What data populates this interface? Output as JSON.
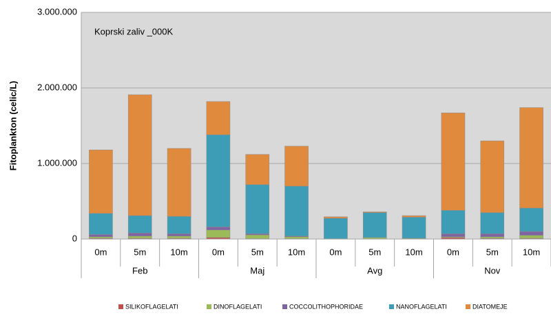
{
  "chart_data": {
    "type": "bar",
    "stacked": true,
    "annotation": "Koprski zaliv _000K",
    "y_label": "Fitoplankton (celic/L)",
    "groups": [
      "Feb",
      "Maj",
      "Avg",
      "Nov"
    ],
    "categories": [
      "0m",
      "5m",
      "10m",
      "0m",
      "5m",
      "10m",
      "0m",
      "5m",
      "10m",
      "0m",
      "5m",
      "10m"
    ],
    "ylim": [
      0,
      3000000
    ],
    "yticks": [
      0,
      {
        "value": 1000000,
        "label": "1.000.000"
      },
      {
        "value": 2000000,
        "label": "2.000.000"
      },
      {
        "value": 3000000,
        "label": "3.000.000"
      }
    ],
    "grid": true,
    "legend": "bottom",
    "series": [
      {
        "name": "SILIKOFLAGELATI",
        "color": "#c0504d",
        "values": [
          10000,
          10000,
          10000,
          20000,
          5000,
          5000,
          0,
          0,
          0,
          20000,
          10000,
          10000
        ]
      },
      {
        "name": "DINOFLAGELATI",
        "color": "#9bbb59",
        "values": [
          20000,
          30000,
          30000,
          100000,
          50000,
          25000,
          5000,
          20000,
          10000,
          10000,
          20000,
          40000
        ]
      },
      {
        "name": "COCCOLITHOPHORIDAE",
        "color": "#8064a2",
        "values": [
          30000,
          40000,
          30000,
          40000,
          15000,
          10000,
          0,
          0,
          0,
          40000,
          40000,
          50000
        ]
      },
      {
        "name": "NANOFLAGELATI",
        "color": "#3d9db6",
        "values": [
          280000,
          230000,
          230000,
          1220000,
          650000,
          660000,
          270000,
          330000,
          280000,
          310000,
          280000,
          310000
        ]
      },
      {
        "name": "DIATOMEJE",
        "color": "#e08a3e",
        "values": [
          840000,
          1600000,
          900000,
          440000,
          400000,
          530000,
          20000,
          10000,
          20000,
          1290000,
          950000,
          1330000
        ]
      }
    ]
  }
}
